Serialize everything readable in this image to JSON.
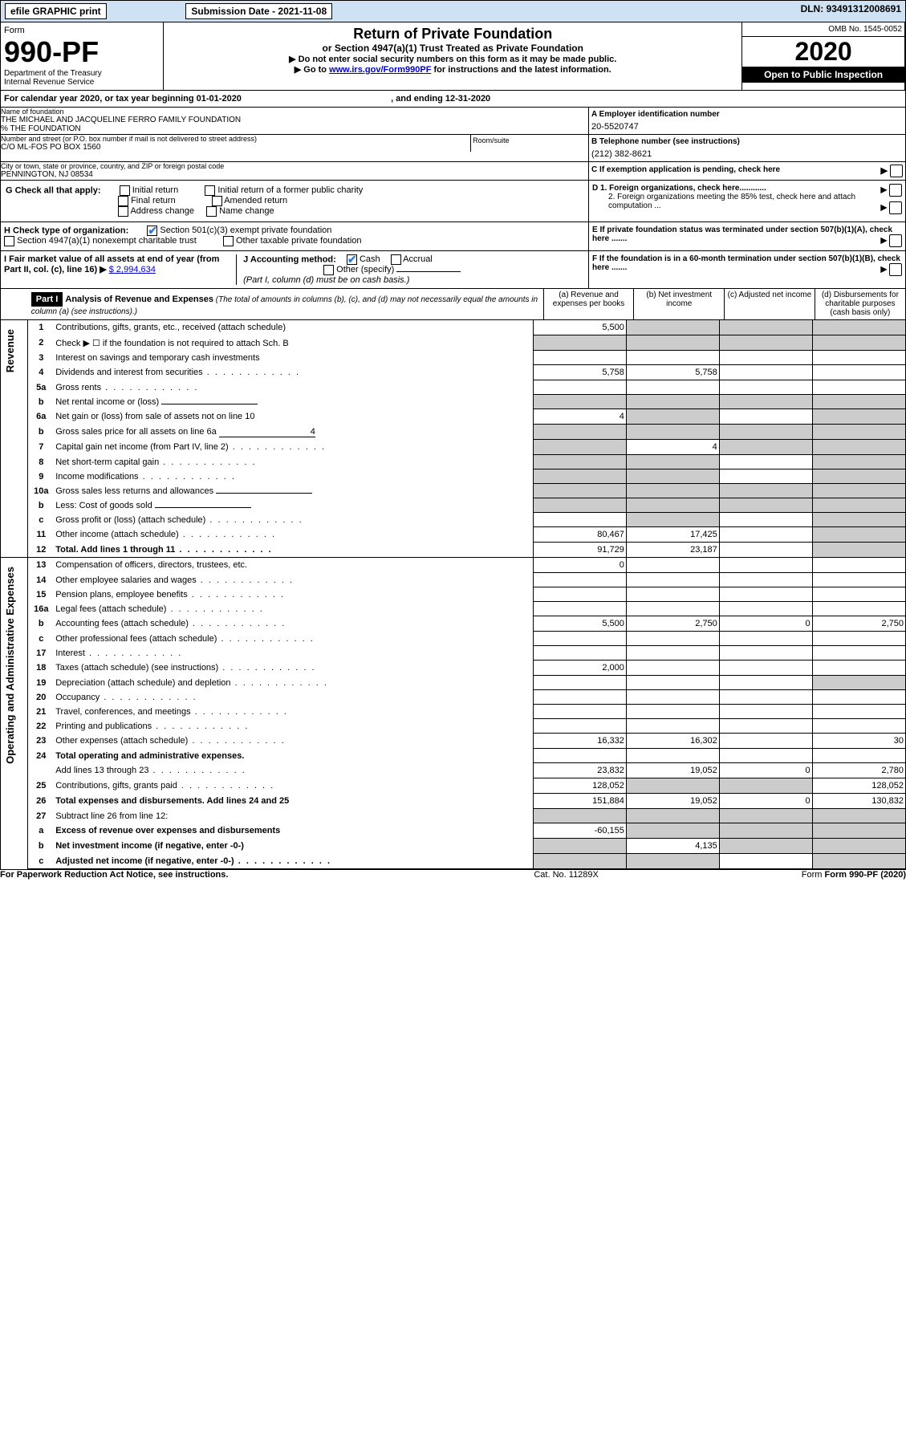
{
  "topbar": {
    "efile": "efile GRAPHIC print",
    "submission_label": "Submission Date - 2021-11-08",
    "dln": "DLN: 93491312008691"
  },
  "header": {
    "form": "Form",
    "form_num": "990-PF",
    "dept": "Department of the Treasury",
    "irs": "Internal Revenue Service",
    "title": "Return of Private Foundation",
    "subtitle": "or Section 4947(a)(1) Trust Treated as Private Foundation",
    "instr1": "▶ Do not enter social security numbers on this form as it may be made public.",
    "instr2_pre": "▶ Go to ",
    "instr2_link": "www.irs.gov/Form990PF",
    "instr2_post": " for instructions and the latest information.",
    "omb": "OMB No. 1545-0052",
    "year": "2020",
    "open": "Open to Public Inspection"
  },
  "calendar": {
    "text_pre": "For calendar year 2020, or tax year beginning ",
    "begin": "01-01-2020",
    "text_mid": " , and ending ",
    "end": "12-31-2020"
  },
  "entity": {
    "name_label": "Name of foundation",
    "name1": "THE MICHAEL AND JACQUELINE FERRO FAMILY FOUNDATION",
    "name2": "% THE FOUNDATION",
    "addr_label": "Number and street (or P.O. box number if mail is not delivered to street address)",
    "addr": "C/O ML-FOS PO BOX 1560",
    "room_label": "Room/suite",
    "city_label": "City or town, state or province, country, and ZIP or foreign postal code",
    "city": "PENNINGTON, NJ  08534",
    "a_label": "A Employer identification number",
    "ein": "20-5520747",
    "b_label": "B Telephone number (see instructions)",
    "phone": "(212) 382-8621",
    "c_label": "C If exemption application is pending, check here"
  },
  "checks": {
    "g_label": "G Check all that apply:",
    "g1": "Initial return",
    "g2": "Final return",
    "g3": "Address change",
    "g4": "Initial return of a former public charity",
    "g5": "Amended return",
    "g6": "Name change",
    "h_label": "H Check type of organization:",
    "h1": "Section 501(c)(3) exempt private foundation",
    "h2": "Section 4947(a)(1) nonexempt charitable trust",
    "h3": "Other taxable private foundation",
    "i_label": "I Fair market value of all assets at end of year (from Part II, col. (c), line 16)",
    "i_arrow": "▶",
    "i_value": "$  2,994,634",
    "j_label": "J Accounting method:",
    "j1": "Cash",
    "j2": "Accrual",
    "j3": "Other (specify)",
    "j_note": "(Part I, column (d) must be on cash basis.)",
    "d1": "D 1. Foreign organizations, check here............",
    "d2": "2. Foreign organizations meeting the 85% test, check here and attach computation ...",
    "e": "E  If private foundation status was terminated under section 507(b)(1)(A), check here .......",
    "f": "F  If the foundation is in a 60-month termination under section 507(b)(1)(B), check here .......",
    "arrow": "▶"
  },
  "part1": {
    "label": "Part I",
    "title": "Analysis of Revenue and Expenses",
    "title_note": " (The total of amounts in columns (b), (c), and (d) may not necessarily equal the amounts in column (a) (see instructions).)",
    "col_a": "(a)   Revenue and expenses per books",
    "col_b": "(b)   Net investment income",
    "col_c": "(c)   Adjusted net income",
    "col_d": "(d)   Disbursements for charitable purposes (cash basis only)"
  },
  "sidebars": {
    "revenue": "Revenue",
    "expenses": "Operating and Administrative Expenses"
  },
  "rows": [
    {
      "n": "1",
      "t": "Contributions, gifts, grants, etc., received (attach schedule)",
      "a": "5,500",
      "grey_b": true,
      "grey_c": true,
      "grey_d": true
    },
    {
      "n": "2",
      "t": "Check ▶ ☐ if the foundation is not required to attach Sch. B",
      "dots_under": true,
      "grey_a": true,
      "grey_b": true,
      "grey_c": true,
      "grey_d": true
    },
    {
      "n": "3",
      "t": "Interest on savings and temporary cash investments"
    },
    {
      "n": "4",
      "t": "Dividends and interest from securities",
      "dots": true,
      "a": "5,758",
      "b": "5,758"
    },
    {
      "n": "5a",
      "t": "Gross rents",
      "dots": true
    },
    {
      "n": "b",
      "t": "Net rental income or (loss)",
      "inline": true,
      "grey_a": true,
      "grey_b": true,
      "grey_c": true,
      "grey_d": true
    },
    {
      "n": "6a",
      "t": "Net gain or (loss) from sale of assets not on line 10",
      "a": "4",
      "grey_b": true,
      "grey_d": true
    },
    {
      "n": "b",
      "t": "Gross sales price for all assets on line 6a",
      "inline": true,
      "inline_val": "4",
      "grey_a": true,
      "grey_b": true,
      "grey_c": true,
      "grey_d": true
    },
    {
      "n": "7",
      "t": "Capital gain net income (from Part IV, line 2)",
      "dots": true,
      "grey_a": true,
      "b": "4",
      "grey_c": true,
      "grey_d": true
    },
    {
      "n": "8",
      "t": "Net short-term capital gain",
      "dots": true,
      "grey_a": true,
      "grey_b": true,
      "grey_d": true
    },
    {
      "n": "9",
      "t": "Income modifications",
      "dots": true,
      "grey_a": true,
      "grey_b": true,
      "grey_d": true
    },
    {
      "n": "10a",
      "t": "Gross sales less returns and allowances",
      "inline": true,
      "grey_a": true,
      "grey_b": true,
      "grey_c": true,
      "grey_d": true
    },
    {
      "n": "b",
      "t": "Less: Cost of goods sold",
      "dots": true,
      "inline": true,
      "grey_a": true,
      "grey_b": true,
      "grey_c": true,
      "grey_d": true
    },
    {
      "n": "c",
      "t": "Gross profit or (loss) (attach schedule)",
      "dots": true,
      "grey_b": true,
      "grey_d": true
    },
    {
      "n": "11",
      "t": "Other income (attach schedule)",
      "dots": true,
      "a": "80,467",
      "b": "17,425",
      "grey_d": true
    },
    {
      "n": "12",
      "t": "Total. Add lines 1 through 11",
      "dots": true,
      "bold": true,
      "a": "91,729",
      "b": "23,187",
      "grey_d": true
    },
    {
      "n": "13",
      "t": "Compensation of officers, directors, trustees, etc.",
      "a": "0"
    },
    {
      "n": "14",
      "t": "Other employee salaries and wages",
      "dots": true
    },
    {
      "n": "15",
      "t": "Pension plans, employee benefits",
      "dots": true
    },
    {
      "n": "16a",
      "t": "Legal fees (attach schedule)",
      "dots": true
    },
    {
      "n": "b",
      "t": "Accounting fees (attach schedule)",
      "dots": true,
      "a": "5,500",
      "b": "2,750",
      "c": "0",
      "d": "2,750"
    },
    {
      "n": "c",
      "t": "Other professional fees (attach schedule)",
      "dots": true
    },
    {
      "n": "17",
      "t": "Interest",
      "dots": true
    },
    {
      "n": "18",
      "t": "Taxes (attach schedule) (see instructions)",
      "dots": true,
      "a": "2,000"
    },
    {
      "n": "19",
      "t": "Depreciation (attach schedule) and depletion",
      "dots": true,
      "grey_d": true
    },
    {
      "n": "20",
      "t": "Occupancy",
      "dots": true
    },
    {
      "n": "21",
      "t": "Travel, conferences, and meetings",
      "dots": true
    },
    {
      "n": "22",
      "t": "Printing and publications",
      "dots": true
    },
    {
      "n": "23",
      "t": "Other expenses (attach schedule)",
      "dots": true,
      "a": "16,332",
      "b": "16,302",
      "d": "30"
    },
    {
      "n": "24",
      "t": "Total operating and administrative expenses.",
      "bold": true
    },
    {
      "n": "",
      "t": "Add lines 13 through 23",
      "dots": true,
      "a": "23,832",
      "b": "19,052",
      "c": "0",
      "d": "2,780"
    },
    {
      "n": "25",
      "t": "Contributions, gifts, grants paid",
      "dots": true,
      "a": "128,052",
      "grey_b": true,
      "grey_c": true,
      "d": "128,052"
    },
    {
      "n": "26",
      "t": "Total expenses and disbursements. Add lines 24 and 25",
      "bold": true,
      "a": "151,884",
      "b": "19,052",
      "c": "0",
      "d": "130,832"
    },
    {
      "n": "27",
      "t": "Subtract line 26 from line 12:",
      "grey_a": true,
      "grey_b": true,
      "grey_c": true,
      "grey_d": true
    },
    {
      "n": "a",
      "t": "Excess of revenue over expenses and disbursements",
      "bold": true,
      "a": "-60,155",
      "grey_b": true,
      "grey_c": true,
      "grey_d": true
    },
    {
      "n": "b",
      "t": "Net investment income (if negative, enter -0-)",
      "bold": true,
      "grey_a": true,
      "b": "4,135",
      "grey_c": true,
      "grey_d": true
    },
    {
      "n": "c",
      "t": "Adjusted net income (if negative, enter -0-)",
      "dots": true,
      "bold": true,
      "grey_a": true,
      "grey_b": true,
      "grey_d": true
    }
  ],
  "footer": {
    "left": "For Paperwork Reduction Act Notice, see instructions.",
    "cat": "Cat. No. 11289X",
    "form": "Form 990-PF (2020)"
  }
}
